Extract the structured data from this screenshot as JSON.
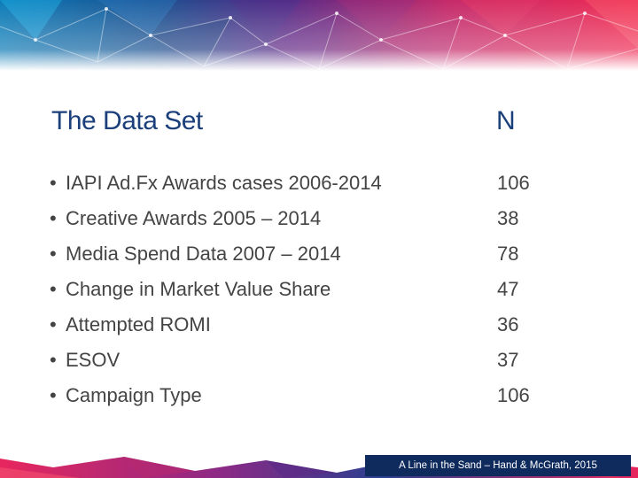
{
  "slide": {
    "title": "The Data Set",
    "n_header": "N",
    "bullet_glyph": "•",
    "rows": [
      {
        "label": "IAPI Ad.Fx Awards cases 2006-2014",
        "value": "106"
      },
      {
        "label": "Creative Awards 2005 – 2014",
        "value": "38"
      },
      {
        "label": "Media Spend Data 2007 – 2014",
        "value": "78"
      },
      {
        "label": "Change in Market Value Share",
        "value": "47"
      },
      {
        "label": "Attempted ROMI",
        "value": "36"
      },
      {
        "label": "ESOV",
        "value": "37"
      },
      {
        "label": "Campaign Type",
        "value": "106"
      }
    ],
    "footer": "A Line in the Sand – Hand & McGrath, 2015"
  },
  "colors": {
    "title": "#1b3f7a",
    "body_text": "#444444",
    "footer_bg": "#0f2a5c",
    "banner_blue": "#0d7fb8",
    "banner_purple": "#7b2a8f",
    "banner_pink": "#e8265e"
  }
}
